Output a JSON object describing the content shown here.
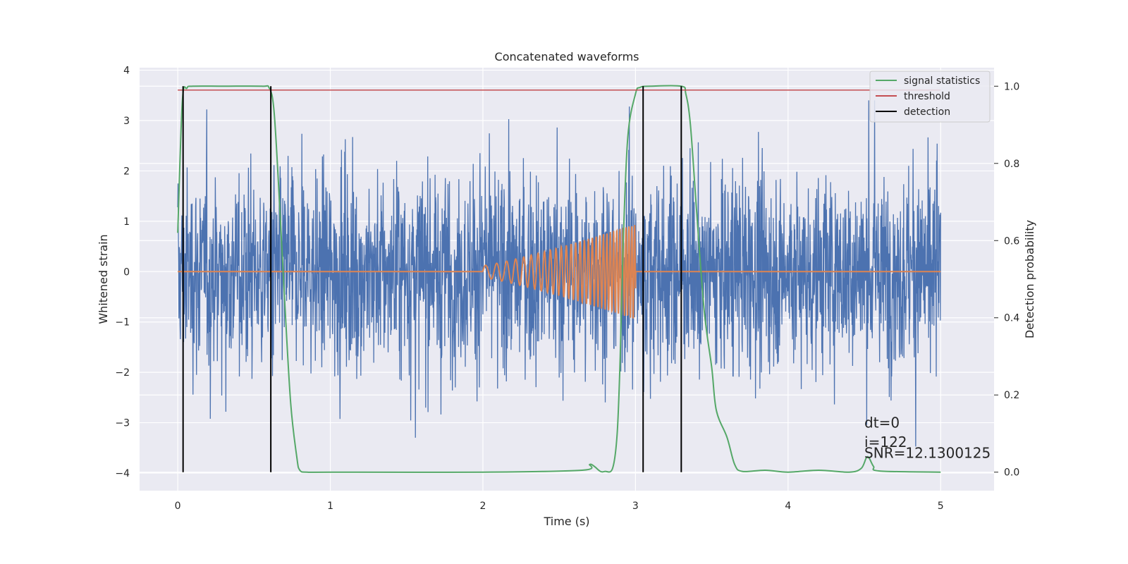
{
  "chart_data": {
    "type": "line",
    "title": "Concatenated waveforms",
    "xlabel": "Time (s)",
    "ylabel": "Whitened strain",
    "y2label": "Detection probability",
    "xlim": [
      -0.25,
      5.35
    ],
    "ylim": [
      -4.35,
      4.05
    ],
    "y2lim": [
      -0.048,
      1.048
    ],
    "x_ticks": [
      0,
      1,
      2,
      3,
      4,
      5
    ],
    "y_ticks": [
      -4,
      -3,
      -2,
      -1,
      0,
      1,
      2,
      3,
      4
    ],
    "y2_ticks": [
      0.0,
      0.2,
      0.4,
      0.6,
      0.8,
      1.0
    ],
    "y2_tick_labels": [
      "0.0",
      "0.2",
      "0.4",
      "0.6",
      "0.8",
      "1.0"
    ],
    "grid": true,
    "legend_position": "top-right",
    "series": [
      {
        "name": "",
        "axis": "left",
        "color": "#4C72B0",
        "kind": "noise",
        "x_range": [
          0,
          5
        ],
        "typical_amplitude": 1.3,
        "peak_amplitude": 3.4
      },
      {
        "name": "",
        "axis": "left",
        "color": "#DD8452",
        "kind": "chirp",
        "x_range": [
          0,
          5
        ],
        "chirp_start": 2.0,
        "chirp_end": 3.0,
        "start_amplitude": 0.12,
        "end_amplitude": 0.95,
        "start_frequency_hz": 13,
        "end_frequency_hz": 55
      },
      {
        "name": "signal statistics",
        "axis": "right",
        "color": "#55A868",
        "x": [
          0.0,
          0.03,
          0.06,
          0.1,
          0.3,
          0.55,
          0.6,
          0.63,
          0.66,
          0.7,
          0.74,
          0.78,
          0.8,
          0.85,
          1.0,
          2.0,
          2.65,
          2.7,
          2.73,
          2.77,
          2.8,
          2.85,
          2.88,
          2.9,
          2.92,
          2.95,
          3.0,
          3.03,
          3.1,
          3.3,
          3.33,
          3.36,
          3.4,
          3.45,
          3.5,
          3.53,
          3.6,
          3.65,
          3.7,
          3.85,
          4.0,
          4.2,
          4.4,
          4.48,
          4.52,
          4.56,
          4.6,
          5.0
        ],
        "values": [
          0.62,
          0.96,
          0.995,
          1.0,
          1.0,
          1.0,
          0.995,
          0.94,
          0.75,
          0.45,
          0.18,
          0.04,
          0.005,
          0.0,
          0.0,
          0.0,
          0.005,
          0.02,
          0.015,
          0.002,
          0.002,
          0.01,
          0.1,
          0.3,
          0.6,
          0.87,
          0.98,
          0.997,
          1.0,
          1.0,
          0.98,
          0.9,
          0.68,
          0.42,
          0.27,
          0.16,
          0.09,
          0.02,
          0.002,
          0.005,
          0.0,
          0.005,
          0.0,
          0.01,
          0.04,
          0.015,
          0.003,
          0.0
        ]
      },
      {
        "name": "threshold",
        "axis": "right",
        "color": "#C44E52",
        "x": [
          0,
          5
        ],
        "values": [
          0.99,
          0.99
        ]
      },
      {
        "name": "detection",
        "axis": "right",
        "color": "#000000",
        "kind": "vlines",
        "x": [
          0.035,
          0.61,
          3.05,
          3.3
        ],
        "from": 0.0,
        "to": 1.0
      }
    ],
    "annotations": [
      {
        "text": "dt=0",
        "x": 4.5,
        "y": -3.1
      },
      {
        "text": "i=122",
        "x": 4.5,
        "y": -3.48
      },
      {
        "text": "SNR=12.1300125",
        "x": 4.5,
        "y": -3.7
      }
    ]
  }
}
